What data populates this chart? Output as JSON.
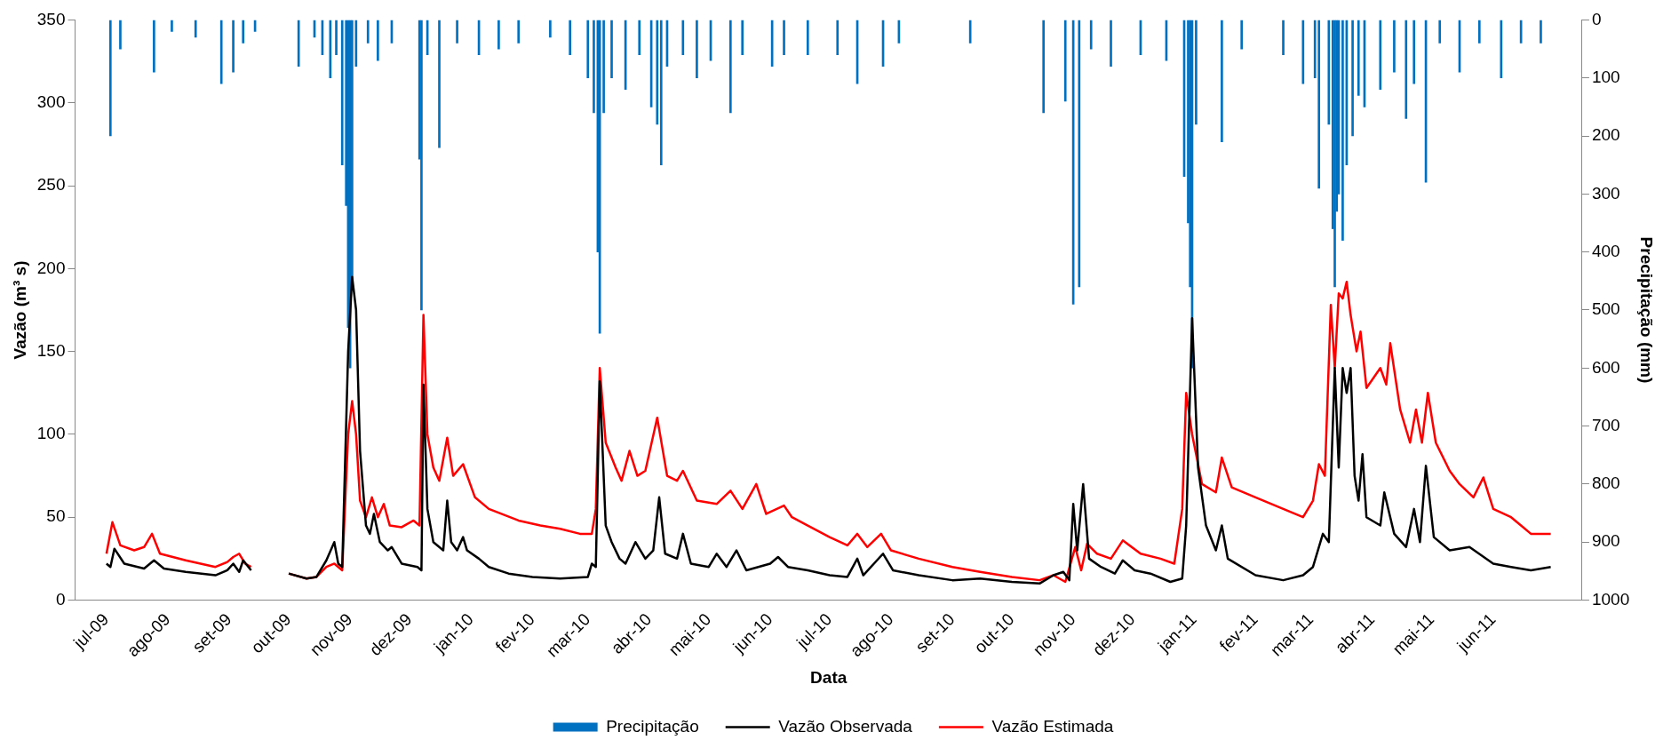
{
  "chart_data": {
    "type": "line",
    "xlabel": "Data",
    "ylabel": "Vazão (m³ s)",
    "y2label": "Precipitação (mm)",
    "xlim": [
      "2009-07-01",
      "2011-06-30"
    ],
    "xticks": [
      {
        "value": "2009-07-01",
        "label": "jul-09"
      },
      {
        "value": "2009-08-01",
        "label": "ago-09"
      },
      {
        "value": "2009-09-01",
        "label": "set-09"
      },
      {
        "value": "2009-10-01",
        "label": "out-09"
      },
      {
        "value": "2009-11-01",
        "label": "nov-09"
      },
      {
        "value": "2009-12-01",
        "label": "dez-09"
      },
      {
        "value": "2010-01-01",
        "label": "jan-10"
      },
      {
        "value": "2010-02-01",
        "label": "fev-10"
      },
      {
        "value": "2010-03-01",
        "label": "mar-10"
      },
      {
        "value": "2010-04-01",
        "label": "abr-10"
      },
      {
        "value": "2010-05-01",
        "label": "mai-10"
      },
      {
        "value": "2010-06-01",
        "label": "jun-10"
      },
      {
        "value": "2010-07-01",
        "label": "jul-10"
      },
      {
        "value": "2010-08-01",
        "label": "ago-10"
      },
      {
        "value": "2010-09-01",
        "label": "set-10"
      },
      {
        "value": "2010-10-01",
        "label": "out-10"
      },
      {
        "value": "2010-11-01",
        "label": "nov-10"
      },
      {
        "value": "2010-12-01",
        "label": "dez-10"
      },
      {
        "value": "2011-01-01",
        "label": "jan-11"
      },
      {
        "value": "2011-02-01",
        "label": "fev-11"
      },
      {
        "value": "2011-03-01",
        "label": "mar-11"
      },
      {
        "value": "2011-04-01",
        "label": "abr-11"
      },
      {
        "value": "2011-05-01",
        "label": "mai-11"
      },
      {
        "value": "2011-06-01",
        "label": "jun-11"
      }
    ],
    "ylim": [
      0,
      350
    ],
    "yticks": [
      0,
      50,
      100,
      150,
      200,
      250,
      300,
      350
    ],
    "y2lim": [
      1000,
      0
    ],
    "y2ticks": [
      0,
      100,
      200,
      300,
      400,
      500,
      600,
      700,
      800,
      900,
      1000
    ],
    "legend": "bottom",
    "grid": false,
    "series": [
      {
        "name": "Precipitação",
        "type": "bar",
        "axis": "y2",
        "color": "#0070c0",
        "x": [
          "2009-07-03",
          "2009-07-08",
          "2009-07-25",
          "2009-08-03",
          "2009-08-15",
          "2009-08-28",
          "2009-09-03",
          "2009-09-08",
          "2009-09-14",
          "2009-10-06",
          "2009-10-14",
          "2009-10-18",
          "2009-10-22",
          "2009-10-25",
          "2009-10-28",
          "2009-10-30",
          "2009-10-31",
          "2009-11-01",
          "2009-11-02",
          "2009-11-04",
          "2009-11-10",
          "2009-11-15",
          "2009-11-22",
          "2009-12-06",
          "2009-12-07",
          "2009-12-10",
          "2009-12-16",
          "2009-12-25",
          "2010-01-05",
          "2010-01-15",
          "2010-01-25",
          "2010-02-10",
          "2010-02-20",
          "2010-03-01",
          "2010-03-04",
          "2010-03-06",
          "2010-03-07",
          "2010-03-09",
          "2010-03-13",
          "2010-03-20",
          "2010-03-27",
          "2010-04-02",
          "2010-04-05",
          "2010-04-07",
          "2010-04-10",
          "2010-04-18",
          "2010-04-25",
          "2010-05-02",
          "2010-05-12",
          "2010-05-18",
          "2010-06-02",
          "2010-06-08",
          "2010-06-20",
          "2010-07-05",
          "2010-07-15",
          "2010-07-28",
          "2010-08-05",
          "2010-09-10",
          "2010-10-17",
          "2010-10-28",
          "2010-11-01",
          "2010-11-04",
          "2010-11-10",
          "2010-11-20",
          "2010-12-05",
          "2010-12-18",
          "2010-12-27",
          "2010-12-29",
          "2010-12-30",
          "2010-12-31",
          "2011-01-02",
          "2011-01-15",
          "2011-01-25",
          "2011-02-15",
          "2011-02-25",
          "2011-03-03",
          "2011-03-05",
          "2011-03-10",
          "2011-03-12",
          "2011-03-13",
          "2011-03-14",
          "2011-03-15",
          "2011-03-17",
          "2011-03-19",
          "2011-03-22",
          "2011-03-25",
          "2011-03-28",
          "2011-04-05",
          "2011-04-12",
          "2011-04-18",
          "2011-04-22",
          "2011-04-28",
          "2011-05-05",
          "2011-05-15",
          "2011-05-25",
          "2011-06-05",
          "2011-06-15",
          "2011-06-25"
        ],
        "values": [
          200,
          50,
          90,
          20,
          30,
          110,
          90,
          40,
          20,
          80,
          30,
          60,
          100,
          60,
          250,
          320,
          530,
          600,
          450,
          80,
          40,
          70,
          40,
          240,
          500,
          60,
          220,
          40,
          60,
          50,
          40,
          30,
          60,
          100,
          160,
          400,
          540,
          160,
          100,
          120,
          60,
          150,
          180,
          250,
          80,
          60,
          100,
          70,
          160,
          60,
          80,
          60,
          60,
          60,
          110,
          80,
          40,
          40,
          160,
          140,
          490,
          460,
          50,
          80,
          60,
          70,
          270,
          350,
          460,
          600,
          180,
          210,
          50,
          60,
          110,
          100,
          290,
          180,
          360,
          460,
          330,
          300,
          380,
          250,
          200,
          130,
          150,
          120,
          90,
          170,
          110,
          280,
          40,
          90,
          40,
          100,
          40,
          40
        ]
      },
      {
        "name": "Vazão Observada",
        "color": "#000000",
        "x": [
          "2009-07-01",
          "2009-07-03",
          "2009-07-05",
          "2009-07-10",
          "2009-07-20",
          "2009-07-25",
          "2009-07-30",
          "2009-08-10",
          "2009-08-25",
          "2009-08-31",
          "2009-09-03",
          "2009-09-06",
          "2009-09-08",
          "2009-09-12",
          "2009-09-20",
          "2009-10-01",
          "2009-10-10",
          "2009-10-15",
          "2009-10-20",
          "2009-10-24",
          "2009-10-26",
          "2009-10-28",
          "2009-10-31",
          "2009-11-02",
          "2009-11-04",
          "2009-11-06",
          "2009-11-09",
          "2009-11-11",
          "2009-11-13",
          "2009-11-16",
          "2009-11-20",
          "2009-11-22",
          "2009-11-27",
          "2009-12-05",
          "2009-12-07",
          "2009-12-08",
          "2009-12-10",
          "2009-12-13",
          "2009-12-18",
          "2009-12-20",
          "2009-12-22",
          "2009-12-25",
          "2009-12-28",
          "2009-12-30",
          "2010-01-05",
          "2010-01-10",
          "2010-01-20",
          "2010-02-01",
          "2010-02-15",
          "2010-03-01",
          "2010-03-03",
          "2010-03-05",
          "2010-03-07",
          "2010-03-10",
          "2010-03-13",
          "2010-03-17",
          "2010-03-20",
          "2010-03-25",
          "2010-03-30",
          "2010-04-03",
          "2010-04-06",
          "2010-04-09",
          "2010-04-15",
          "2010-04-18",
          "2010-04-22",
          "2010-05-01",
          "2010-05-05",
          "2010-05-10",
          "2010-05-15",
          "2010-05-20",
          "2010-06-01",
          "2010-06-05",
          "2010-06-10",
          "2010-06-20",
          "2010-07-01",
          "2010-07-10",
          "2010-07-15",
          "2010-07-18",
          "2010-07-28",
          "2010-08-02",
          "2010-08-15",
          "2010-09-01",
          "2010-09-15",
          "2010-10-01",
          "2010-10-15",
          "2010-10-22",
          "2010-10-27",
          "2010-10-30",
          "2010-11-01",
          "2010-11-03",
          "2010-11-06",
          "2010-11-09",
          "2010-11-15",
          "2010-11-22",
          "2010-11-26",
          "2010-12-02",
          "2010-12-10",
          "2010-12-20",
          "2010-12-26",
          "2010-12-28",
          "2010-12-31",
          "2011-01-03",
          "2011-01-07",
          "2011-01-12",
          "2011-01-15",
          "2011-01-18",
          "2011-02-01",
          "2011-02-15",
          "2011-02-25",
          "2011-03-02",
          "2011-03-07",
          "2011-03-10",
          "2011-03-13",
          "2011-03-15",
          "2011-03-17",
          "2011-03-19",
          "2011-03-21",
          "2011-03-23",
          "2011-03-25",
          "2011-03-27",
          "2011-03-29",
          "2011-04-05",
          "2011-04-07",
          "2011-04-12",
          "2011-04-18",
          "2011-04-22",
          "2011-04-25",
          "2011-04-28",
          "2011-05-02",
          "2011-05-10",
          "2011-05-20",
          "2011-06-01",
          "2011-06-10",
          "2011-06-20",
          "2011-06-30"
        ],
        "values": [
          22,
          20,
          31,
          22,
          19,
          24,
          19,
          17,
          15,
          18,
          22,
          17,
          24,
          18,
          null,
          16,
          13,
          14,
          24,
          35,
          22,
          20,
          150,
          195,
          175,
          90,
          45,
          40,
          52,
          35,
          30,
          32,
          22,
          20,
          18,
          130,
          55,
          35,
          30,
          60,
          35,
          30,
          38,
          30,
          25,
          20,
          16,
          14,
          13,
          14,
          22,
          20,
          132,
          45,
          35,
          25,
          22,
          35,
          25,
          30,
          62,
          28,
          25,
          40,
          22,
          20,
          28,
          20,
          30,
          18,
          22,
          26,
          20,
          18,
          15,
          14,
          25,
          15,
          28,
          18,
          15,
          12,
          13,
          11,
          10,
          15,
          17,
          12,
          58,
          30,
          70,
          25,
          20,
          16,
          24,
          18,
          16,
          11,
          13,
          45,
          170,
          80,
          45,
          30,
          45,
          25,
          15,
          12,
          15,
          20,
          40,
          35,
          140,
          80,
          140,
          125,
          140,
          75,
          60,
          88,
          50,
          45,
          65,
          40,
          32,
          55,
          35,
          81,
          38,
          30,
          32,
          22,
          20,
          18,
          20
        ]
      },
      {
        "name": "Vazão Estimada",
        "color": "#ff0000",
        "x": [
          "2009-07-01",
          "2009-07-04",
          "2009-07-08",
          "2009-07-15",
          "2009-07-20",
          "2009-07-24",
          "2009-07-28",
          "2009-08-10",
          "2009-08-25",
          "2009-08-31",
          "2009-09-03",
          "2009-09-06",
          "2009-09-09",
          "2009-09-12",
          "2009-09-20",
          "2009-10-01",
          "2009-10-10",
          "2009-10-15",
          "2009-10-20",
          "2009-10-24",
          "2009-10-28",
          "2009-10-31",
          "2009-11-02",
          "2009-11-04",
          "2009-11-06",
          "2009-11-09",
          "2009-11-12",
          "2009-11-15",
          "2009-11-18",
          "2009-11-21",
          "2009-11-27",
          "2009-12-03",
          "2009-12-06",
          "2009-12-08",
          "2009-12-10",
          "2009-12-13",
          "2009-12-16",
          "2009-12-20",
          "2009-12-23",
          "2009-12-28",
          "2010-01-03",
          "2010-01-10",
          "2010-01-25",
          "2010-02-05",
          "2010-02-15",
          "2010-02-25",
          "2010-03-03",
          "2010-03-05",
          "2010-03-07",
          "2010-03-10",
          "2010-03-15",
          "2010-03-18",
          "2010-03-22",
          "2010-03-26",
          "2010-03-30",
          "2010-04-05",
          "2010-04-10",
          "2010-04-15",
          "2010-04-18",
          "2010-04-25",
          "2010-05-05",
          "2010-05-12",
          "2010-05-18",
          "2010-05-25",
          "2010-05-30",
          "2010-06-08",
          "2010-06-12",
          "2010-06-20",
          "2010-07-01",
          "2010-07-10",
          "2010-07-15",
          "2010-07-20",
          "2010-07-27",
          "2010-08-01",
          "2010-08-15",
          "2010-09-01",
          "2010-09-15",
          "2010-10-01",
          "2010-10-15",
          "2010-10-22",
          "2010-10-28",
          "2010-11-02",
          "2010-11-05",
          "2010-11-08",
          "2010-11-13",
          "2010-11-20",
          "2010-11-26",
          "2010-12-05",
          "2010-12-15",
          "2010-12-22",
          "2010-12-26",
          "2010-12-28",
          "2010-12-31",
          "2011-01-05",
          "2011-01-12",
          "2011-01-15",
          "2011-01-20",
          "2011-02-01",
          "2011-02-15",
          "2011-02-25",
          "2011-03-02",
          "2011-03-05",
          "2011-03-08",
          "2011-03-11",
          "2011-03-13",
          "2011-03-15",
          "2011-03-17",
          "2011-03-19",
          "2011-03-21",
          "2011-03-24",
          "2011-03-26",
          "2011-03-29",
          "2011-04-05",
          "2011-04-08",
          "2011-04-10",
          "2011-04-15",
          "2011-04-20",
          "2011-04-23",
          "2011-04-26",
          "2011-04-29",
          "2011-05-03",
          "2011-05-10",
          "2011-05-15",
          "2011-05-22",
          "2011-05-27",
          "2011-06-01",
          "2011-06-10",
          "2011-06-15",
          "2011-06-20",
          "2011-06-30"
        ],
        "values": [
          28,
          47,
          33,
          30,
          32,
          40,
          28,
          24,
          20,
          23,
          26,
          28,
          22,
          20,
          null,
          16,
          13,
          14,
          20,
          22,
          18,
          100,
          120,
          100,
          60,
          50,
          62,
          50,
          58,
          45,
          44,
          48,
          45,
          172,
          100,
          80,
          72,
          98,
          75,
          82,
          62,
          55,
          48,
          45,
          43,
          40,
          40,
          55,
          140,
          95,
          80,
          72,
          90,
          75,
          78,
          110,
          75,
          72,
          78,
          60,
          58,
          66,
          55,
          70,
          52,
          57,
          50,
          45,
          38,
          33,
          40,
          32,
          40,
          30,
          25,
          20,
          17,
          14,
          12,
          15,
          11,
          32,
          18,
          34,
          28,
          25,
          36,
          28,
          25,
          22,
          55,
          125,
          100,
          70,
          65,
          86,
          68,
          62,
          55,
          50,
          60,
          82,
          75,
          178,
          140,
          185,
          182,
          192,
          172,
          150,
          162,
          128,
          140,
          130,
          155,
          115,
          95,
          115,
          95,
          125,
          95,
          78,
          70,
          62,
          74,
          55,
          50,
          45,
          40,
          40
        ]
      }
    ]
  }
}
